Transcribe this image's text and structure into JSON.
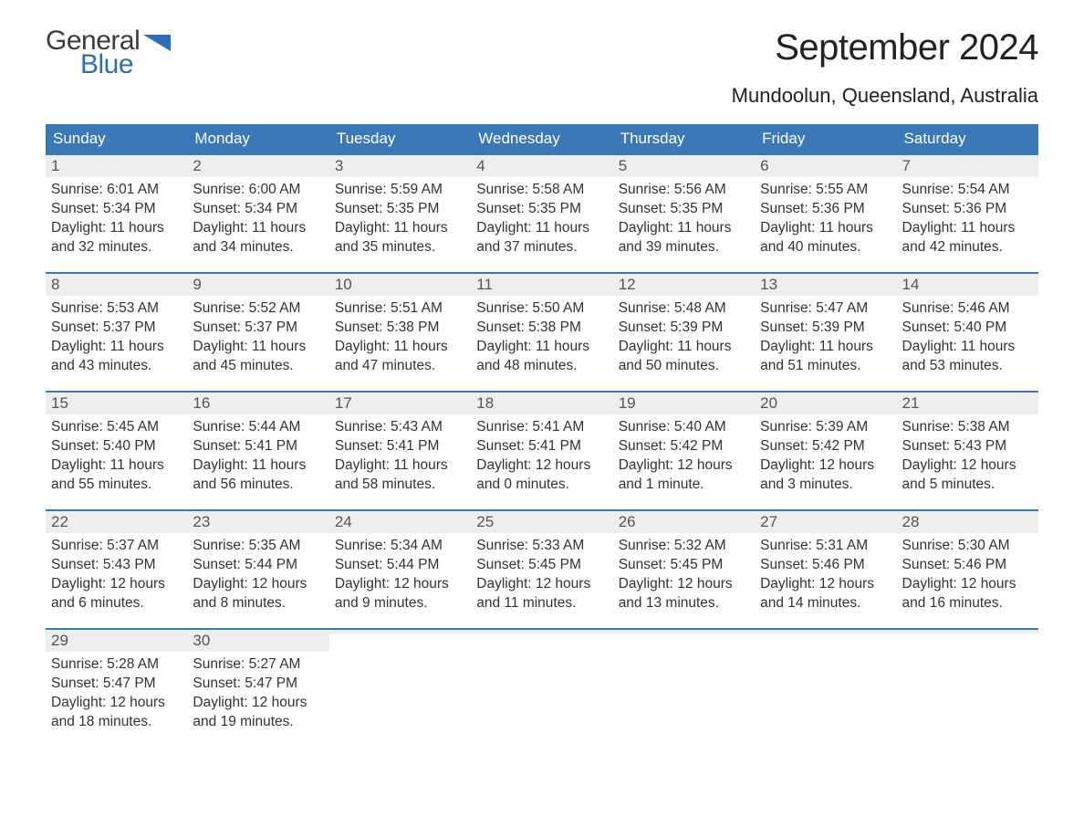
{
  "brand": {
    "word1": "General",
    "word2": "Blue",
    "word1_color": "#3c3c3c",
    "word2_color": "#2d6fb6",
    "icon_color": "#2d6fb6"
  },
  "title": "September 2024",
  "subtitle": "Mundoolun, Queensland, Australia",
  "colors": {
    "header_bg": "#3b78b8",
    "header_text": "#ffffff",
    "daynum_bg": "#eeeeee",
    "daynum_text": "#555555",
    "body_text": "#333333",
    "rule": "#3b78b8",
    "page_bg": "#ffffff"
  },
  "typography": {
    "title_fontsize": 40,
    "subtitle_fontsize": 22,
    "weekday_fontsize": 17,
    "daynum_fontsize": 17,
    "body_fontsize": 15.5
  },
  "weekdays": [
    "Sunday",
    "Monday",
    "Tuesday",
    "Wednesday",
    "Thursday",
    "Friday",
    "Saturday"
  ],
  "weeks": [
    [
      {
        "day": "1",
        "sunrise": "Sunrise: 6:01 AM",
        "sunset": "Sunset: 5:34 PM",
        "daylight": "Daylight: 11 hours and 32 minutes."
      },
      {
        "day": "2",
        "sunrise": "Sunrise: 6:00 AM",
        "sunset": "Sunset: 5:34 PM",
        "daylight": "Daylight: 11 hours and 34 minutes."
      },
      {
        "day": "3",
        "sunrise": "Sunrise: 5:59 AM",
        "sunset": "Sunset: 5:35 PM",
        "daylight": "Daylight: 11 hours and 35 minutes."
      },
      {
        "day": "4",
        "sunrise": "Sunrise: 5:58 AM",
        "sunset": "Sunset: 5:35 PM",
        "daylight": "Daylight: 11 hours and 37 minutes."
      },
      {
        "day": "5",
        "sunrise": "Sunrise: 5:56 AM",
        "sunset": "Sunset: 5:35 PM",
        "daylight": "Daylight: 11 hours and 39 minutes."
      },
      {
        "day": "6",
        "sunrise": "Sunrise: 5:55 AM",
        "sunset": "Sunset: 5:36 PM",
        "daylight": "Daylight: 11 hours and 40 minutes."
      },
      {
        "day": "7",
        "sunrise": "Sunrise: 5:54 AM",
        "sunset": "Sunset: 5:36 PM",
        "daylight": "Daylight: 11 hours and 42 minutes."
      }
    ],
    [
      {
        "day": "8",
        "sunrise": "Sunrise: 5:53 AM",
        "sunset": "Sunset: 5:37 PM",
        "daylight": "Daylight: 11 hours and 43 minutes."
      },
      {
        "day": "9",
        "sunrise": "Sunrise: 5:52 AM",
        "sunset": "Sunset: 5:37 PM",
        "daylight": "Daylight: 11 hours and 45 minutes."
      },
      {
        "day": "10",
        "sunrise": "Sunrise: 5:51 AM",
        "sunset": "Sunset: 5:38 PM",
        "daylight": "Daylight: 11 hours and 47 minutes."
      },
      {
        "day": "11",
        "sunrise": "Sunrise: 5:50 AM",
        "sunset": "Sunset: 5:38 PM",
        "daylight": "Daylight: 11 hours and 48 minutes."
      },
      {
        "day": "12",
        "sunrise": "Sunrise: 5:48 AM",
        "sunset": "Sunset: 5:39 PM",
        "daylight": "Daylight: 11 hours and 50 minutes."
      },
      {
        "day": "13",
        "sunrise": "Sunrise: 5:47 AM",
        "sunset": "Sunset: 5:39 PM",
        "daylight": "Daylight: 11 hours and 51 minutes."
      },
      {
        "day": "14",
        "sunrise": "Sunrise: 5:46 AM",
        "sunset": "Sunset: 5:40 PM",
        "daylight": "Daylight: 11 hours and 53 minutes."
      }
    ],
    [
      {
        "day": "15",
        "sunrise": "Sunrise: 5:45 AM",
        "sunset": "Sunset: 5:40 PM",
        "daylight": "Daylight: 11 hours and 55 minutes."
      },
      {
        "day": "16",
        "sunrise": "Sunrise: 5:44 AM",
        "sunset": "Sunset: 5:41 PM",
        "daylight": "Daylight: 11 hours and 56 minutes."
      },
      {
        "day": "17",
        "sunrise": "Sunrise: 5:43 AM",
        "sunset": "Sunset: 5:41 PM",
        "daylight": "Daylight: 11 hours and 58 minutes."
      },
      {
        "day": "18",
        "sunrise": "Sunrise: 5:41 AM",
        "sunset": "Sunset: 5:41 PM",
        "daylight": "Daylight: 12 hours and 0 minutes."
      },
      {
        "day": "19",
        "sunrise": "Sunrise: 5:40 AM",
        "sunset": "Sunset: 5:42 PM",
        "daylight": "Daylight: 12 hours and 1 minute."
      },
      {
        "day": "20",
        "sunrise": "Sunrise: 5:39 AM",
        "sunset": "Sunset: 5:42 PM",
        "daylight": "Daylight: 12 hours and 3 minutes."
      },
      {
        "day": "21",
        "sunrise": "Sunrise: 5:38 AM",
        "sunset": "Sunset: 5:43 PM",
        "daylight": "Daylight: 12 hours and 5 minutes."
      }
    ],
    [
      {
        "day": "22",
        "sunrise": "Sunrise: 5:37 AM",
        "sunset": "Sunset: 5:43 PM",
        "daylight": "Daylight: 12 hours and 6 minutes."
      },
      {
        "day": "23",
        "sunrise": "Sunrise: 5:35 AM",
        "sunset": "Sunset: 5:44 PM",
        "daylight": "Daylight: 12 hours and 8 minutes."
      },
      {
        "day": "24",
        "sunrise": "Sunrise: 5:34 AM",
        "sunset": "Sunset: 5:44 PM",
        "daylight": "Daylight: 12 hours and 9 minutes."
      },
      {
        "day": "25",
        "sunrise": "Sunrise: 5:33 AM",
        "sunset": "Sunset: 5:45 PM",
        "daylight": "Daylight: 12 hours and 11 minutes."
      },
      {
        "day": "26",
        "sunrise": "Sunrise: 5:32 AM",
        "sunset": "Sunset: 5:45 PM",
        "daylight": "Daylight: 12 hours and 13 minutes."
      },
      {
        "day": "27",
        "sunrise": "Sunrise: 5:31 AM",
        "sunset": "Sunset: 5:46 PM",
        "daylight": "Daylight: 12 hours and 14 minutes."
      },
      {
        "day": "28",
        "sunrise": "Sunrise: 5:30 AM",
        "sunset": "Sunset: 5:46 PM",
        "daylight": "Daylight: 12 hours and 16 minutes."
      }
    ],
    [
      {
        "day": "29",
        "sunrise": "Sunrise: 5:28 AM",
        "sunset": "Sunset: 5:47 PM",
        "daylight": "Daylight: 12 hours and 18 minutes."
      },
      {
        "day": "30",
        "sunrise": "Sunrise: 5:27 AM",
        "sunset": "Sunset: 5:47 PM",
        "daylight": "Daylight: 12 hours and 19 minutes."
      },
      {
        "empty": true
      },
      {
        "empty": true
      },
      {
        "empty": true
      },
      {
        "empty": true
      },
      {
        "empty": true
      }
    ]
  ]
}
